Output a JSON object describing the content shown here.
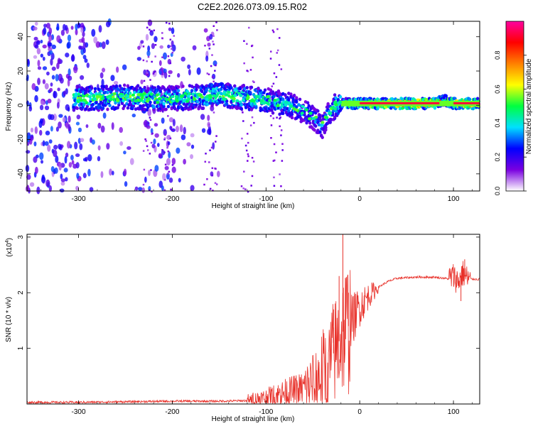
{
  "title": "C2E2.2026.073.09.15.R02",
  "chart_data": [
    {
      "type": "heatmap",
      "name": "spectrogram",
      "xlabel": "Height of straight line (km)",
      "ylabel": "Frequency (Hz)",
      "xlim": [
        -355,
        128
      ],
      "ylim": [
        -50,
        49
      ],
      "xticks": [
        -300,
        -200,
        -100,
        0,
        100
      ],
      "yticks": [
        -40,
        -20,
        0,
        20,
        40
      ],
      "colorbar": {
        "label": "Normalized spectral amplitude",
        "range": [
          0,
          1
        ],
        "ticks": [
          0.0,
          0.2,
          0.4,
          0.6,
          0.8
        ],
        "colormap": [
          "#ffffff",
          "#7a00e0",
          "#0000ff",
          "#00e0ff",
          "#00ff40",
          "#ffff00",
          "#ff8000",
          "#ff0000",
          "#ff00a0"
        ]
      },
      "ridge": {
        "description": "main signal track frequency (Hz) vs height (km)",
        "x": [
          -305,
          -280,
          -250,
          -220,
          -200,
          -170,
          -150,
          -130,
          -110,
          -90,
          -75,
          -60,
          -50,
          -40,
          -32,
          -25,
          -20,
          0,
          40,
          80,
          90,
          100,
          128
        ],
        "y": [
          4,
          4,
          5,
          4,
          4,
          5,
          6,
          5,
          4,
          2,
          0,
          -3,
          -7,
          -12,
          -4,
          0,
          1,
          1,
          1,
          1,
          3,
          1,
          1
        ],
        "amplitude": [
          0.5,
          0.5,
          0.5,
          0.5,
          0.45,
          0.5,
          0.55,
          0.5,
          0.5,
          0.45,
          0.4,
          0.4,
          0.35,
          0.35,
          0.45,
          0.5,
          0.55,
          0.8,
          0.9,
          0.9,
          0.6,
          0.85,
          0.9
        ]
      },
      "noise_region_km": [
        -355,
        -150
      ]
    },
    {
      "type": "line",
      "name": "snr",
      "xlabel": "Height of straight line (km)",
      "ylabel": "SNR (10 * v/v)",
      "yscale_label": "(x10",
      "yscale_exp": "4",
      "xlim": [
        -355,
        128
      ],
      "ylim": [
        0,
        3.05
      ],
      "xticks": [
        -300,
        -200,
        -100,
        0,
        100
      ],
      "yticks": [
        1,
        2,
        3
      ],
      "color": "#e8312a",
      "series": {
        "name": "SNR",
        "x": [
          -355,
          -300,
          -250,
          -200,
          -150,
          -120,
          -100,
          -80,
          -60,
          -45,
          -35,
          -25,
          -18,
          -12,
          -5,
          0,
          10,
          20,
          30,
          40,
          60,
          80,
          95,
          100,
          105,
          110,
          115,
          128
        ],
        "y": [
          0.03,
          0.03,
          0.04,
          0.05,
          0.05,
          0.06,
          0.1,
          0.2,
          0.28,
          0.45,
          0.7,
          1.0,
          1.3,
          1.4,
          1.6,
          1.75,
          1.95,
          2.1,
          2.2,
          2.26,
          2.28,
          2.28,
          2.25,
          2.3,
          2.2,
          2.35,
          2.25,
          2.24
        ]
      },
      "spikes": [
        {
          "x": -18,
          "y": 3.05
        },
        {
          "x": -22,
          "y": 2.3
        },
        {
          "x": -28,
          "y": 1.7
        },
        {
          "x": -12,
          "y": 2.0
        },
        {
          "x": 108,
          "y": 1.85
        },
        {
          "x": 112,
          "y": 2.6
        }
      ]
    }
  ]
}
